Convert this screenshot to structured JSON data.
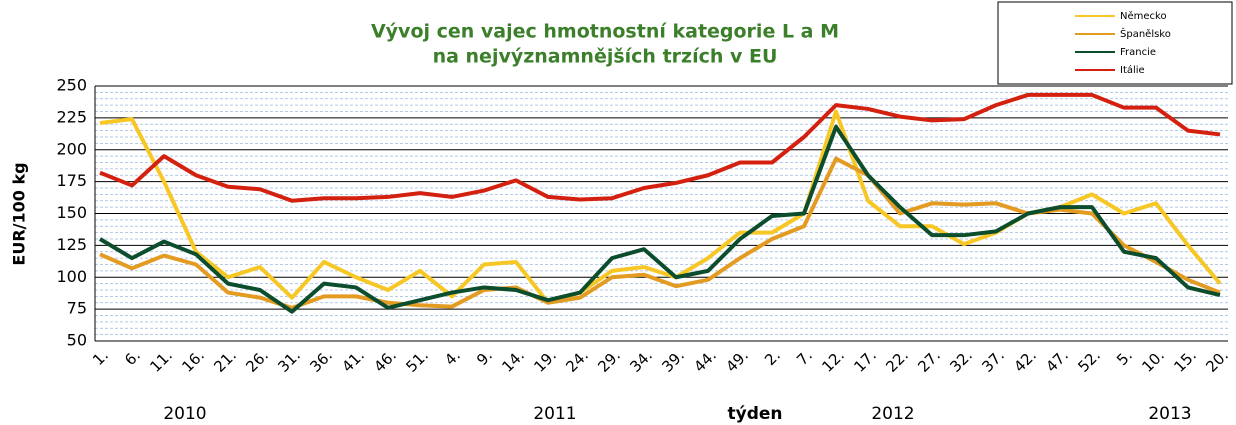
{
  "chart_data": {
    "type": "line",
    "title": "Vývoj cen vajec hmotnostní kategorie L a M",
    "subtitle": "na nejvýznamnějších trzích v EU",
    "y_label": "EUR/100 kg",
    "x_label": "týden",
    "year_labels": [
      "2010",
      "2011",
      "2012",
      "2013"
    ],
    "categories": [
      "1.",
      "6.",
      "11.",
      "16.",
      "21.",
      "26.",
      "31.",
      "36.",
      "41.",
      "46.",
      "51.",
      "4.",
      "9.",
      "14.",
      "19.",
      "24.",
      "29.",
      "34.",
      "39.",
      "44.",
      "49.",
      "2.",
      "7.",
      "12.",
      "17.",
      "22.",
      "27.",
      "32.",
      "37.",
      "42.",
      "47.",
      "52.",
      "5.",
      "10.",
      "15.",
      "20."
    ],
    "ylim": [
      50,
      250
    ],
    "yticks": [
      50,
      75,
      100,
      125,
      150,
      175,
      200,
      225,
      250
    ],
    "grid": true,
    "legend": "top-right",
    "series": [
      {
        "name": "Německo",
        "color": "#f7c825",
        "values": [
          221,
          224,
          175,
          120,
          100,
          108,
          84,
          112,
          100,
          90,
          105,
          85,
          110,
          112,
          80,
          88,
          105,
          108,
          100,
          115,
          135,
          135,
          150,
          230,
          160,
          140,
          140,
          126,
          135,
          150,
          155,
          165,
          150,
          158,
          125,
          95
        ]
      },
      {
        "name": "Španělsko",
        "color": "#e39b22",
        "values": [
          118,
          107,
          117,
          110,
          88,
          84,
          76,
          85,
          85,
          80,
          78,
          77,
          90,
          92,
          80,
          84,
          100,
          102,
          93,
          98,
          115,
          130,
          140,
          193,
          180,
          150,
          158,
          157,
          158,
          150,
          153,
          150,
          125,
          112,
          98,
          88
        ]
      },
      {
        "name": "Francie",
        "color": "#0b4d2c",
        "values": [
          130,
          115,
          128,
          118,
          95,
          90,
          73,
          95,
          92,
          76,
          82,
          88,
          92,
          90,
          82,
          88,
          115,
          122,
          100,
          105,
          130,
          148,
          150,
          218,
          180,
          155,
          133,
          133,
          136,
          150,
          155,
          155,
          120,
          115,
          92,
          86
        ]
      },
      {
        "name": "Itálie",
        "color": "#d4200f",
        "values": [
          182,
          172,
          195,
          180,
          171,
          169,
          160,
          162,
          162,
          163,
          166,
          163,
          168,
          176,
          163,
          161,
          162,
          170,
          174,
          180,
          190,
          190,
          210,
          235,
          232,
          226,
          223,
          224,
          235,
          243,
          243,
          243,
          233,
          233,
          215,
          212
        ]
      }
    ]
  }
}
